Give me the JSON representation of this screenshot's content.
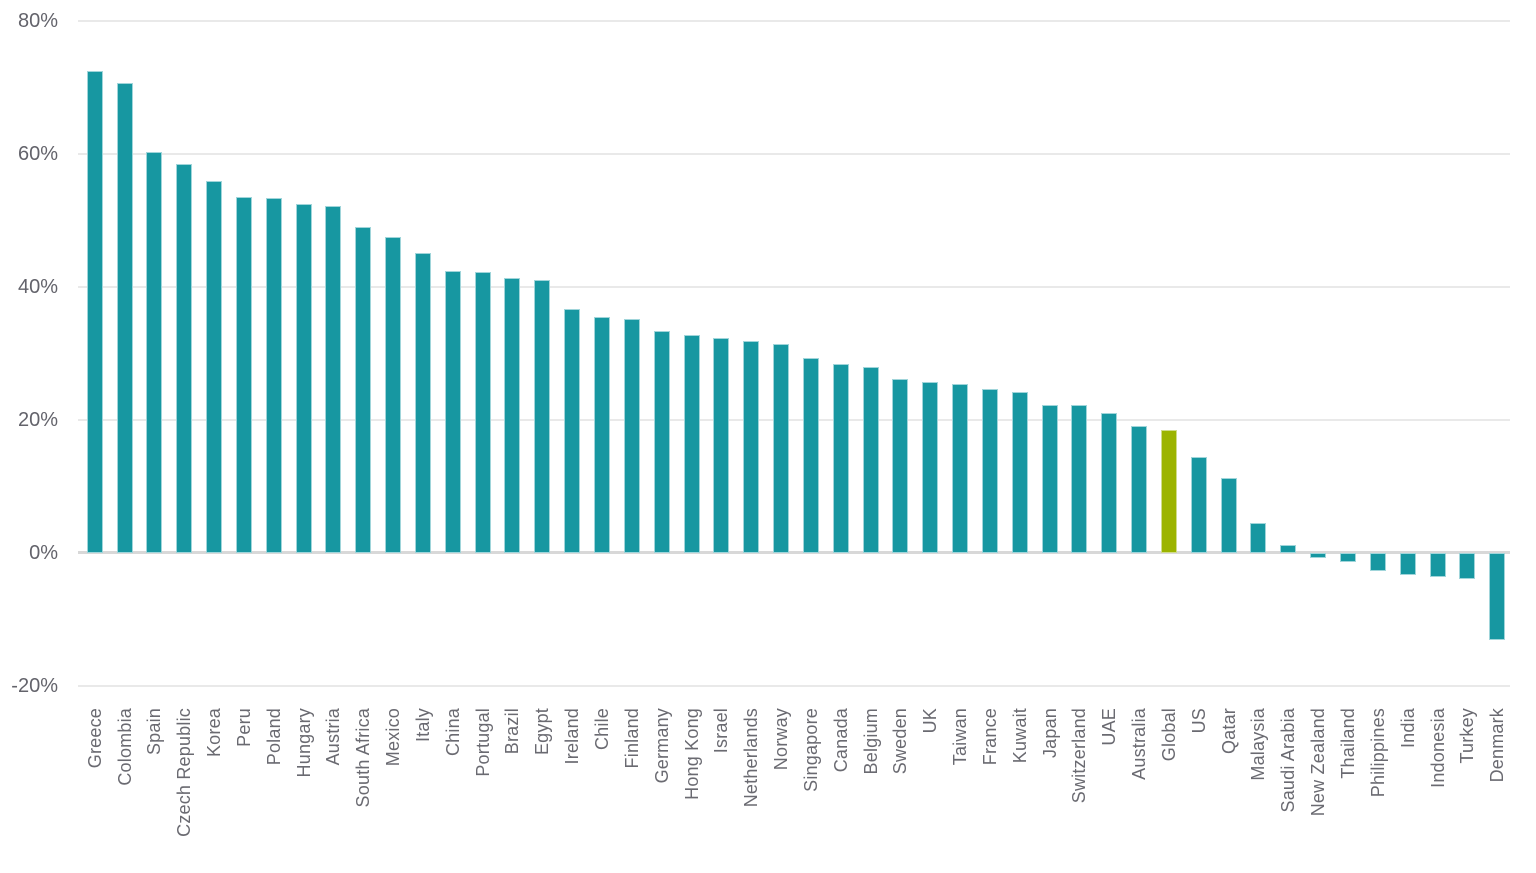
{
  "chart_data": {
    "type": "bar",
    "title": "",
    "xlabel": "",
    "ylabel": "",
    "ylim": [
      -20,
      80
    ],
    "grid": true,
    "legend_position": "none",
    "yticks": [
      80,
      60,
      40,
      20,
      0,
      -20
    ],
    "ytick_labels": [
      "80%",
      "60%",
      "40%",
      "20%",
      "0%",
      "-20%"
    ],
    "highlight_category": "Global",
    "categories": [
      "Greece",
      "Colombia",
      "Spain",
      "Czech Republic",
      "Korea",
      "Peru",
      "Poland",
      "Hungary",
      "Austria",
      "South Africa",
      "Mexico",
      "Italy",
      "China",
      "Portugal",
      "Brazil",
      "Egypt",
      "Ireland",
      "Chile",
      "Finland",
      "Germany",
      "Hong Kong",
      "Israel",
      "Netherlands",
      "Norway",
      "Singapore",
      "Canada",
      "Belgium",
      "Sweden",
      "UK",
      "Taiwan",
      "France",
      "Kuwait",
      "Japan",
      "Switzerland",
      "UAE",
      "Australia",
      "Global",
      "US",
      "Qatar",
      "Malaysia",
      "Saudi Arabia",
      "New Zealand",
      "Thailand",
      "Philippines",
      "India",
      "Indonesia",
      "Turkey",
      "Denmark"
    ],
    "values": [
      72.4,
      70.6,
      60.3,
      58.4,
      55.9,
      53.5,
      53.3,
      52.4,
      52.1,
      49.0,
      47.5,
      45.0,
      42.4,
      42.2,
      41.3,
      41.0,
      36.7,
      35.5,
      35.2,
      33.3,
      32.7,
      32.3,
      31.8,
      31.4,
      29.3,
      28.4,
      27.9,
      26.1,
      25.6,
      25.3,
      24.6,
      24.2,
      22.2,
      22.2,
      21.0,
      19.0,
      18.4,
      14.4,
      11.3,
      4.4,
      1.1,
      -0.8,
      -1.4,
      -2.8,
      -3.3,
      -3.7,
      -4.0,
      -13.2
    ],
    "colors": {
      "bar": "#1797a1",
      "bar_border": "#a0d5da",
      "highlight": "#9cb400",
      "highlight_border": "#d0dc8b",
      "gridline": "#e9e9e9",
      "zero_line": "#d8d8d8",
      "axis_label": "#63636b",
      "category_label": "#6a6a71",
      "background": "#ffffff"
    }
  }
}
